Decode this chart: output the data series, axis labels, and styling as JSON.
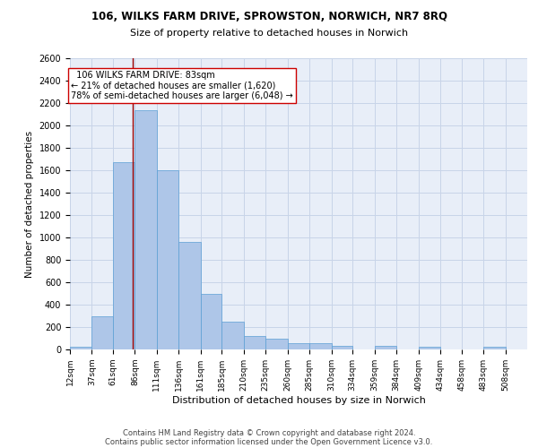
{
  "title1": "106, WILKS FARM DRIVE, SPROWSTON, NORWICH, NR7 8RQ",
  "title2": "Size of property relative to detached houses in Norwich",
  "xlabel": "Distribution of detached houses by size in Norwich",
  "ylabel": "Number of detached properties",
  "footnote1": "Contains HM Land Registry data © Crown copyright and database right 2024.",
  "footnote2": "Contains public sector information licensed under the Open Government Licence v3.0.",
  "annotation_line1": "  106 WILKS FARM DRIVE: 83sqm  ",
  "annotation_line2": "← 21% of detached houses are smaller (1,620)",
  "annotation_line3": "78% of semi-detached houses are larger (6,048) →",
  "bar_color": "#aec6e8",
  "bar_edge_color": "#5a9fd4",
  "vline_color": "#9b0000",
  "vline_x": 83,
  "categories": [
    "12sqm",
    "37sqm",
    "61sqm",
    "86sqm",
    "111sqm",
    "136sqm",
    "161sqm",
    "185sqm",
    "210sqm",
    "235sqm",
    "260sqm",
    "285sqm",
    "310sqm",
    "334sqm",
    "359sqm",
    "384sqm",
    "409sqm",
    "434sqm",
    "458sqm",
    "483sqm",
    "508sqm"
  ],
  "bin_starts": [
    12,
    37,
    61,
    86,
    111,
    136,
    161,
    185,
    210,
    235,
    260,
    285,
    310,
    334,
    359,
    384,
    409,
    434,
    458,
    483,
    508
  ],
  "bin_width": 25,
  "values": [
    25,
    300,
    1670,
    2140,
    1600,
    960,
    500,
    250,
    120,
    100,
    55,
    55,
    35,
    0,
    30,
    0,
    25,
    0,
    0,
    25,
    0
  ],
  "ylim": [
    0,
    2600
  ],
  "yticks": [
    0,
    200,
    400,
    600,
    800,
    1000,
    1200,
    1400,
    1600,
    1800,
    2000,
    2200,
    2400,
    2600
  ],
  "grid_color": "#c8d4e8",
  "background_color": "#e8eef8",
  "fig_width": 6.0,
  "fig_height": 5.0,
  "dpi": 100
}
